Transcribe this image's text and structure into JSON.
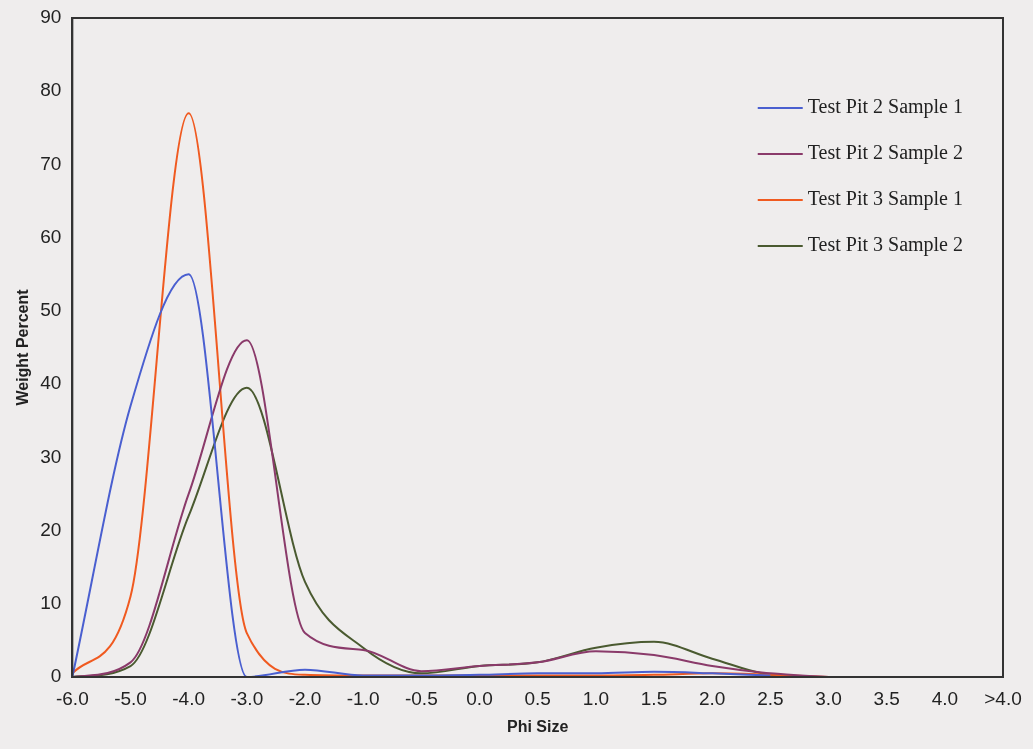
{
  "chart_data": {
    "type": "line",
    "xlabel": "Phi Size",
    "ylabel": "Weight Percent",
    "categories": [
      "-6.0",
      "-5.0",
      "-4.0",
      "-3.0",
      "-2.0",
      "-1.0",
      "-0.5",
      "0.0",
      "0.5",
      "1.0",
      "1.5",
      "2.0",
      "2.5",
      "3.0",
      "3.5",
      "4.0",
      ">4.0"
    ],
    "series": [
      {
        "name": "Test Pit 2 Sample 1",
        "color": "#4a5fd0",
        "values": [
          0,
          37,
          55,
          0,
          1,
          0.2,
          0.2,
          0.3,
          0.5,
          0.5,
          0.7,
          0.5,
          0.2,
          null,
          null,
          null,
          null
        ]
      },
      {
        "name": "Test Pit 2 Sample 2",
        "color": "#8a3a6a",
        "values": [
          0,
          2,
          25,
          46,
          6,
          3.7,
          0.8,
          1.5,
          2,
          3.5,
          3,
          1.5,
          0.5,
          0,
          null,
          null,
          null
        ]
      },
      {
        "name": "Test Pit 3 Sample 1",
        "color": "#f05a20",
        "values": [
          0.5,
          11,
          77,
          6,
          0.3,
          0.2,
          0.2,
          0.2,
          0.2,
          0.2,
          0.3,
          0.5,
          0.3,
          0,
          null,
          null,
          null
        ]
      },
      {
        "name": "Test Pit 3 Sample 2",
        "color": "#4a5a30",
        "values": [
          0,
          1.5,
          22,
          39.5,
          13,
          4,
          0.5,
          1.5,
          2,
          4,
          4.8,
          2.5,
          0.3,
          0,
          0,
          0,
          0
        ]
      }
    ],
    "ylim": [
      0,
      90
    ],
    "yticks": [
      0,
      10,
      20,
      30,
      40,
      50,
      60,
      70,
      80,
      90
    ],
    "grid": false,
    "legend": "right",
    "marker": "none",
    "line_style": "solid"
  }
}
